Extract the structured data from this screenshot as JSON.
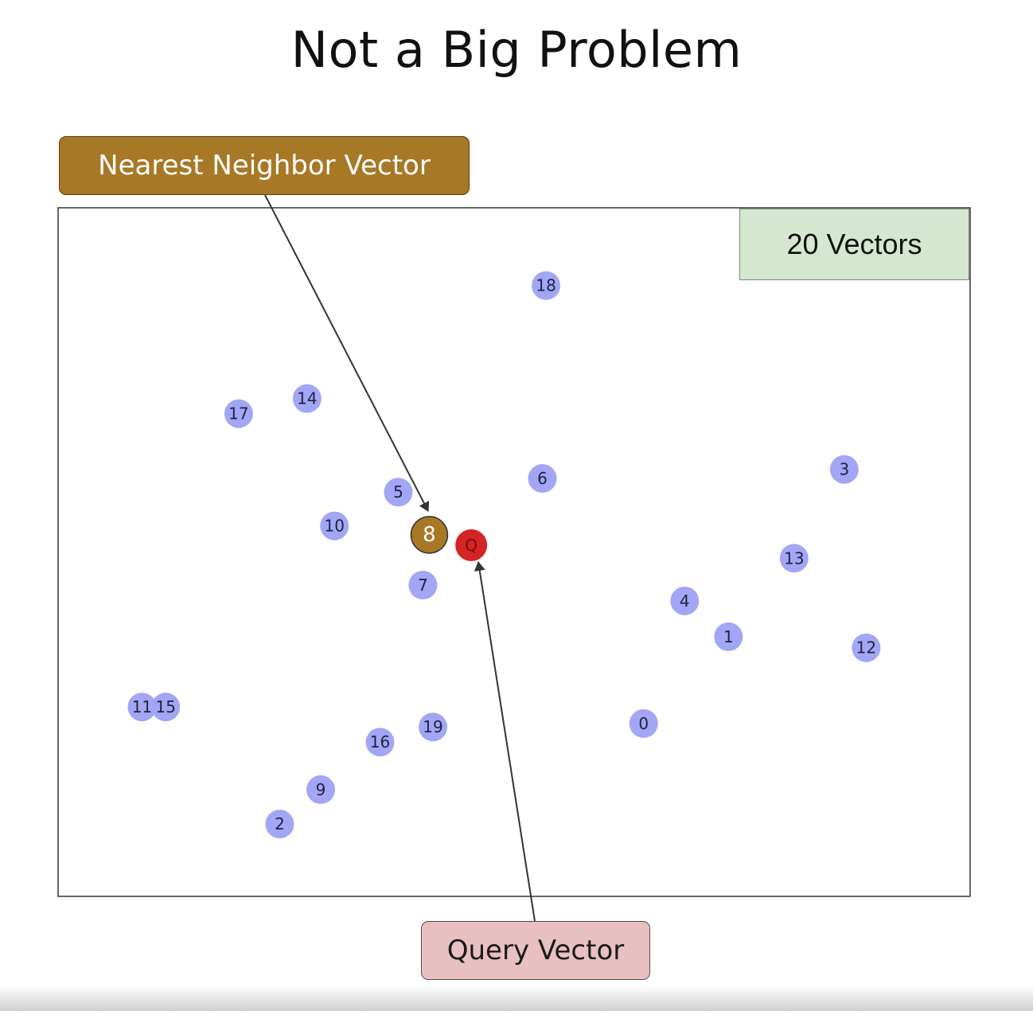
{
  "title": "Not a Big Problem",
  "callouts": {
    "nearest": "Nearest Neighbor Vector",
    "query": "Query Vector",
    "count": "20 Vectors"
  },
  "colors": {
    "vector_dot": "#a3a6f4",
    "nearest_dot": "#a77826",
    "query_dot": "#d42424",
    "arrow": "#333333"
  },
  "chart_data": {
    "type": "scatter",
    "xlim": [
      0,
      100
    ],
    "ylim": [
      0,
      100
    ],
    "points": [
      {
        "label": "0",
        "x": 64.2,
        "y": 25.1
      },
      {
        "label": "1",
        "x": 73.5,
        "y": 37.7
      },
      {
        "label": "2",
        "x": 24.3,
        "y": 10.5
      },
      {
        "label": "3",
        "x": 86.2,
        "y": 62.0
      },
      {
        "label": "4",
        "x": 68.7,
        "y": 42.9
      },
      {
        "label": "5",
        "x": 37.3,
        "y": 58.7
      },
      {
        "label": "6",
        "x": 53.1,
        "y": 60.7
      },
      {
        "label": "7",
        "x": 40.0,
        "y": 45.2
      },
      {
        "label": "8",
        "x": 40.7,
        "y": 52.5,
        "highlight": "nearest"
      },
      {
        "label": "9",
        "x": 28.8,
        "y": 15.5
      },
      {
        "label": "10",
        "x": 30.3,
        "y": 53.8
      },
      {
        "label": "11",
        "x": 9.2,
        "y": 27.5
      },
      {
        "label": "12",
        "x": 88.6,
        "y": 36.1
      },
      {
        "label": "13",
        "x": 80.7,
        "y": 49.1
      },
      {
        "label": "14",
        "x": 27.3,
        "y": 72.3
      },
      {
        "label": "15",
        "x": 11.8,
        "y": 27.5
      },
      {
        "label": "16",
        "x": 35.3,
        "y": 22.4
      },
      {
        "label": "17",
        "x": 19.8,
        "y": 70.1
      },
      {
        "label": "18",
        "x": 53.5,
        "y": 88.7
      },
      {
        "label": "19",
        "x": 41.1,
        "y": 24.6
      },
      {
        "label": "Q",
        "x": 45.3,
        "y": 51.0,
        "highlight": "query"
      }
    ]
  }
}
